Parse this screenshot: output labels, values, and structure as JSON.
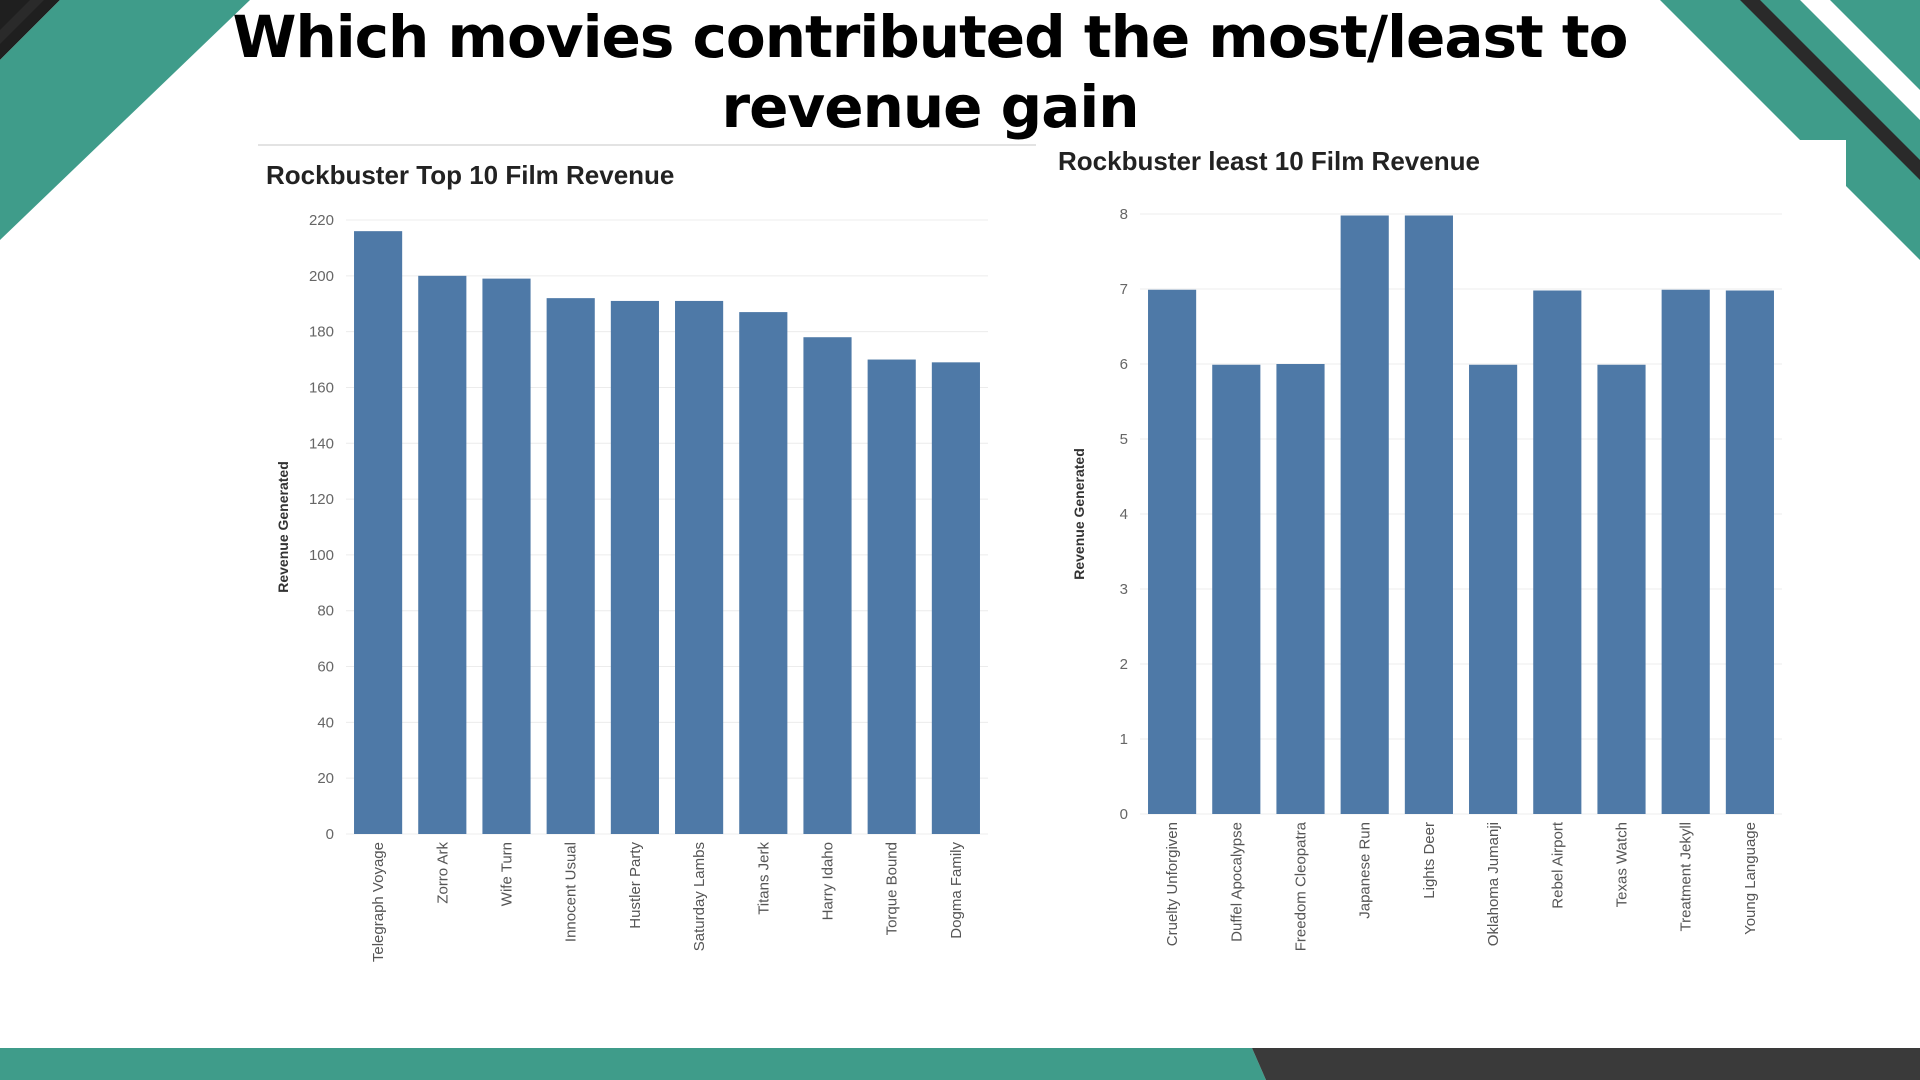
{
  "slide": {
    "title": "Which movies contributed the most/least to revenue gain"
  },
  "colors": {
    "bar": "#4e79a7",
    "teal": "#3f9c8a",
    "dark": "#3a3a3a"
  },
  "chart_data": [
    {
      "type": "bar",
      "title": "Rockbuster Top 10 Film Revenue",
      "xlabel": "",
      "ylabel": "Revenue Generated",
      "ylim": [
        0,
        220
      ],
      "yticks": [
        0,
        20,
        40,
        60,
        80,
        100,
        120,
        140,
        160,
        180,
        200,
        220
      ],
      "grid": true,
      "categories": [
        "Telegraph Voyage",
        "Zorro Ark",
        "Wife Turn",
        "Innocent Usual",
        "Hustler Party",
        "Saturday Lambs",
        "Titans Jerk",
        "Harry Idaho",
        "Torque Bound",
        "Dogma Family"
      ],
      "values": [
        216,
        200,
        199,
        192,
        191,
        191,
        187,
        178,
        170,
        169
      ]
    },
    {
      "type": "bar",
      "title": "Rockbuster least 10 Film Revenue",
      "xlabel": "",
      "ylabel": "Revenue Generated",
      "ylim": [
        0,
        8
      ],
      "yticks": [
        0,
        1,
        2,
        3,
        4,
        5,
        6,
        7,
        8
      ],
      "grid": true,
      "categories": [
        "Cruelty Unforgiven",
        "Duffel Apocalypse",
        "Freedom Cleopatra",
        "Japanese Run",
        "Lights Deer",
        "Oklahoma Jumanji",
        "Rebel Airport",
        "Texas Watch",
        "Treatment Jekyll",
        "Young Language"
      ],
      "values": [
        6.99,
        5.99,
        6.0,
        7.98,
        7.98,
        5.99,
        6.98,
        5.99,
        6.99,
        6.98
      ]
    }
  ]
}
